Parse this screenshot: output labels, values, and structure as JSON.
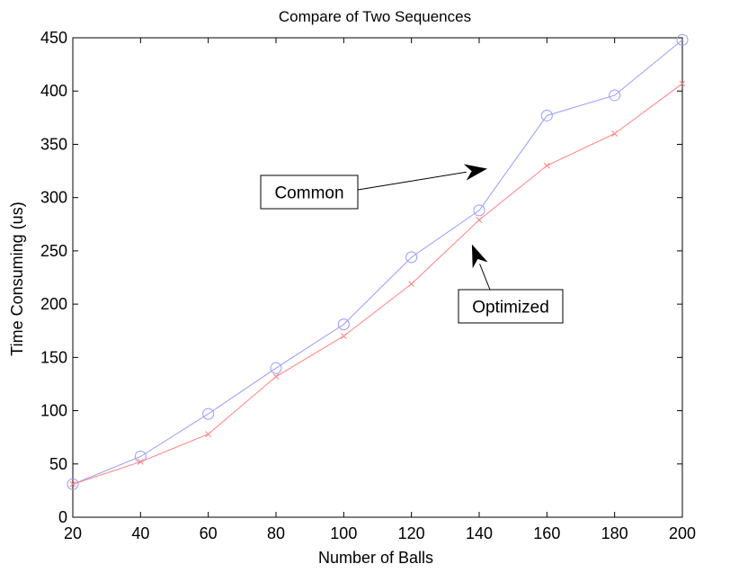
{
  "chart_data": {
    "type": "line",
    "title": "Compare of Two Sequences",
    "xlabel": "Number of Balls",
    "ylabel": "Time Consuming (us)",
    "xlim": [
      20,
      200
    ],
    "ylim": [
      0,
      450
    ],
    "xticks": [
      20,
      40,
      60,
      80,
      100,
      120,
      140,
      160,
      180,
      200
    ],
    "yticks": [
      0,
      50,
      100,
      150,
      200,
      250,
      300,
      350,
      400,
      450
    ],
    "grid": false,
    "x": [
      20,
      40,
      60,
      80,
      100,
      120,
      140,
      160,
      180,
      200
    ],
    "series": [
      {
        "marker": "circle",
        "color": "#9999ff",
        "values": [
          31,
          57,
          97,
          140,
          181,
          244,
          288,
          377,
          396,
          448
        ]
      },
      {
        "marker": "x",
        "color": "#ff8080",
        "values": [
          31,
          52,
          78,
          132,
          170,
          219,
          279,
          330,
          360,
          407
        ]
      }
    ],
    "annotations": [
      {
        "text": "Common",
        "points_to": [
          142,
          327
        ]
      },
      {
        "text": "Optimized",
        "points_to": [
          138,
          255
        ]
      }
    ]
  }
}
